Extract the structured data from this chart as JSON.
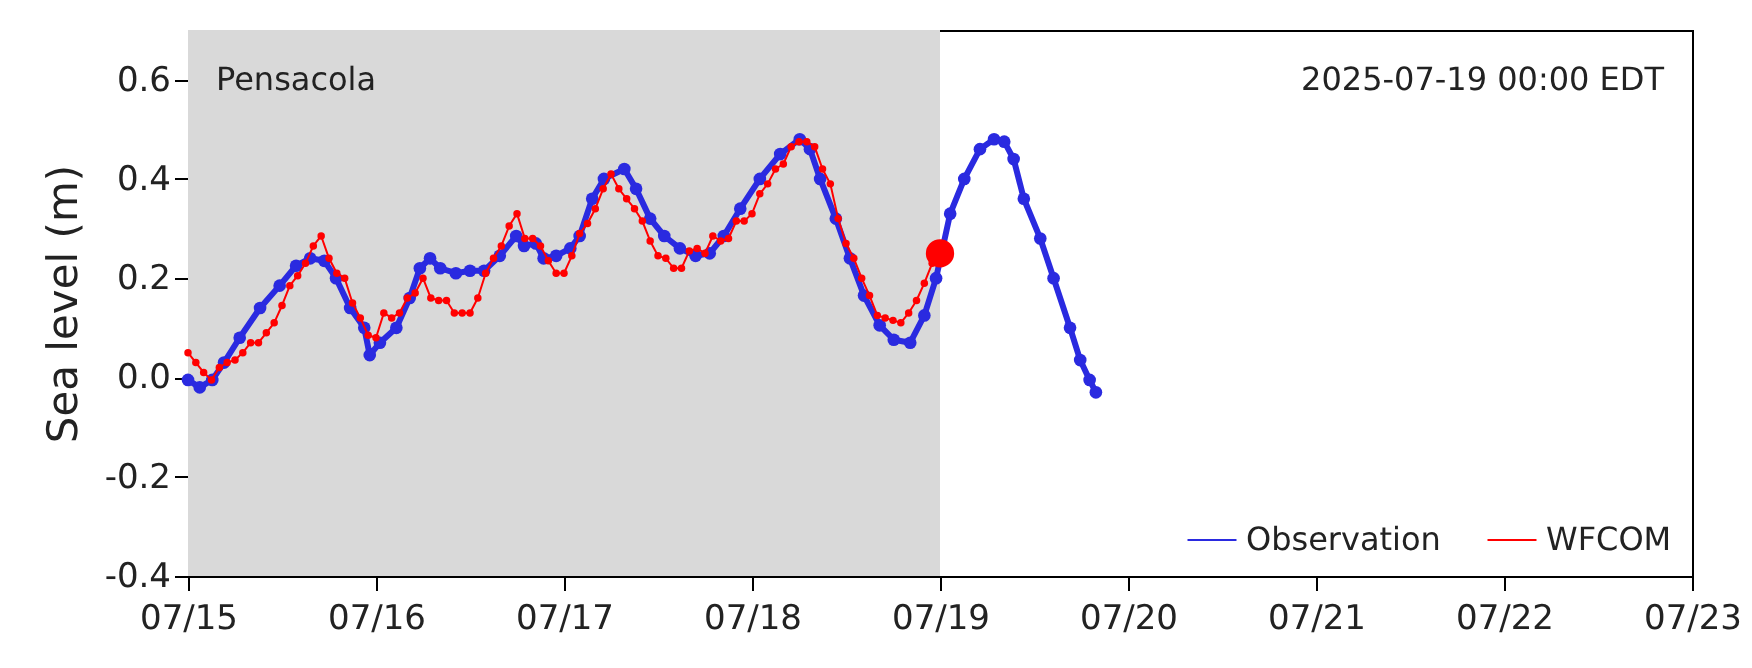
{
  "chart_data": {
    "type": "line",
    "ylabel": "Sea level (m)",
    "annotations": [
      "Pensacola",
      "2025-07-19 00:00 EDT"
    ],
    "xlim": [
      "2025-07-15",
      "2025-07-23"
    ],
    "xticks": [
      {
        "value": "2025-07-15",
        "label": "07/15"
      },
      {
        "value": "2025-07-16",
        "label": "07/16"
      },
      {
        "value": "2025-07-17",
        "label": "07/17"
      },
      {
        "value": "2025-07-18",
        "label": "07/18"
      },
      {
        "value": "2025-07-19",
        "label": "07/19"
      },
      {
        "value": "2025-07-20",
        "label": "07/20"
      },
      {
        "value": "2025-07-21",
        "label": "07/21"
      },
      {
        "value": "2025-07-22",
        "label": "07/22"
      },
      {
        "value": "2025-07-23",
        "label": "07/23"
      }
    ],
    "ylim": [
      -0.4,
      0.7
    ],
    "yticks": [
      -0.4,
      -0.2,
      {
        "value": 0,
        "label": "0.0"
      },
      0.2,
      0.4,
      0.6
    ],
    "bands": [
      {
        "axis": "x",
        "from": "2025-07-15",
        "to": "2025-07-19",
        "color": "#d9d9d9"
      }
    ],
    "legend": "bottom right",
    "marker": "circle",
    "series": [
      {
        "name": "Observation",
        "color": "#2a2ae0",
        "x": [
          "2025-07-15T00:00",
          "2025-07-15T01:30",
          "2025-07-15T03:06",
          "2025-07-15T04:36",
          "2025-07-15T06:36",
          "2025-07-15T09:12",
          "2025-07-15T11:42",
          "2025-07-15T13:48",
          "2025-07-15T15:36",
          "2025-07-15T17:24",
          "2025-07-15T18:54",
          "2025-07-15T20:42",
          "2025-07-15T22:30",
          "2025-07-15T23:12",
          "2025-07-16T00:30",
          "2025-07-16T02:36",
          "2025-07-16T04:18",
          "2025-07-16T05:36",
          "2025-07-16T06:54",
          "2025-07-16T08:12",
          "2025-07-16T10:12",
          "2025-07-16T12:00",
          "2025-07-16T13:48",
          "2025-07-16T15:48",
          "2025-07-16T17:54",
          "2025-07-16T18:54",
          "2025-07-16T20:24",
          "2025-07-16T21:24",
          "2025-07-16T23:00",
          "2025-07-17T00:48",
          "2025-07-17T02:00",
          "2025-07-17T03:36",
          "2025-07-17T05:06",
          "2025-07-17T07:42",
          "2025-07-17T09:12",
          "2025-07-17T11:00",
          "2025-07-17T12:48",
          "2025-07-17T14:48",
          "2025-07-17T16:48",
          "2025-07-17T18:36",
          "2025-07-17T20:24",
          "2025-07-17T22:30",
          "2025-07-18T01:00",
          "2025-07-18T03:36",
          "2025-07-18T06:06",
          "2025-07-18T07:24",
          "2025-07-18T08:42",
          "2025-07-18T10:42",
          "2025-07-18T12:30",
          "2025-07-18T14:18",
          "2025-07-18T16:18",
          "2025-07-18T18:06",
          "2025-07-18T20:12",
          "2025-07-18T22:00",
          "2025-07-18T23:30",
          "2025-07-19T01:18",
          "2025-07-19T03:06",
          "2025-07-19T05:06",
          "2025-07-19T06:54",
          "2025-07-19T08:12",
          "2025-07-19T09:24",
          "2025-07-19T10:42",
          "2025-07-19T12:48",
          "2025-07-19T14:30",
          "2025-07-19T16:36",
          "2025-07-19T17:54",
          "2025-07-19T19:06",
          "2025-07-19T19:54"
        ],
        "values": [
          -0.005,
          -0.02,
          -0.005,
          0.03,
          0.08,
          0.14,
          0.185,
          0.225,
          0.24,
          0.235,
          0.2,
          0.14,
          0.1,
          0.045,
          0.07,
          0.1,
          0.16,
          0.22,
          0.24,
          0.22,
          0.21,
          0.215,
          0.215,
          0.245,
          0.285,
          0.265,
          0.27,
          0.24,
          0.245,
          0.26,
          0.285,
          0.36,
          0.4,
          0.42,
          0.38,
          0.32,
          0.285,
          0.26,
          0.245,
          0.25,
          0.285,
          0.34,
          0.4,
          0.45,
          0.48,
          0.46,
          0.4,
          0.32,
          0.24,
          0.165,
          0.105,
          0.076,
          0.07,
          0.125,
          0.2,
          0.33,
          0.4,
          0.46,
          0.48,
          0.475,
          0.44,
          0.36,
          0.28,
          0.2,
          0.1,
          0.035,
          -0.005,
          -0.03
        ]
      },
      {
        "name": "WFCOM",
        "color": "#ff0000",
        "x": [
          "2025-07-15T00:00",
          "2025-07-15T01:00",
          "2025-07-15T02:00",
          "2025-07-15T03:00",
          "2025-07-15T04:00",
          "2025-07-15T05:00",
          "2025-07-15T06:00",
          "2025-07-15T07:00",
          "2025-07-15T08:00",
          "2025-07-15T09:00",
          "2025-07-15T10:00",
          "2025-07-15T11:00",
          "2025-07-15T12:00",
          "2025-07-15T13:00",
          "2025-07-15T14:00",
          "2025-07-15T15:00",
          "2025-07-15T16:00",
          "2025-07-15T17:00",
          "2025-07-15T18:00",
          "2025-07-15T19:00",
          "2025-07-15T20:00",
          "2025-07-15T21:00",
          "2025-07-15T22:00",
          "2025-07-15T23:00",
          "2025-07-16T00:00",
          "2025-07-16T01:00",
          "2025-07-16T02:00",
          "2025-07-16T03:00",
          "2025-07-16T04:00",
          "2025-07-16T05:00",
          "2025-07-16T06:00",
          "2025-07-16T07:00",
          "2025-07-16T08:00",
          "2025-07-16T09:00",
          "2025-07-16T10:00",
          "2025-07-16T11:00",
          "2025-07-16T12:00",
          "2025-07-16T13:00",
          "2025-07-16T14:00",
          "2025-07-16T15:00",
          "2025-07-16T16:00",
          "2025-07-16T17:00",
          "2025-07-16T18:00",
          "2025-07-16T19:00",
          "2025-07-16T20:00",
          "2025-07-16T21:00",
          "2025-07-16T22:00",
          "2025-07-16T23:00",
          "2025-07-17T00:00",
          "2025-07-17T01:00",
          "2025-07-17T02:00",
          "2025-07-17T03:00",
          "2025-07-17T04:00",
          "2025-07-17T05:00",
          "2025-07-17T06:00",
          "2025-07-17T07:00",
          "2025-07-17T08:00",
          "2025-07-17T09:00",
          "2025-07-17T10:00",
          "2025-07-17T11:00",
          "2025-07-17T12:00",
          "2025-07-17T13:00",
          "2025-07-17T14:00",
          "2025-07-17T15:00",
          "2025-07-17T16:00",
          "2025-07-17T17:00",
          "2025-07-17T18:00",
          "2025-07-17T19:00",
          "2025-07-17T20:00",
          "2025-07-17T21:00",
          "2025-07-17T22:00",
          "2025-07-17T23:00",
          "2025-07-18T00:00",
          "2025-07-18T01:00",
          "2025-07-18T02:00",
          "2025-07-18T03:00",
          "2025-07-18T04:00",
          "2025-07-18T05:00",
          "2025-07-18T06:00",
          "2025-07-18T07:00",
          "2025-07-18T08:00",
          "2025-07-18T09:00",
          "2025-07-18T10:00",
          "2025-07-18T11:00",
          "2025-07-18T12:00",
          "2025-07-18T13:00",
          "2025-07-18T14:00",
          "2025-07-18T15:00",
          "2025-07-18T16:00",
          "2025-07-18T17:00",
          "2025-07-18T18:00",
          "2025-07-18T19:00",
          "2025-07-18T20:00",
          "2025-07-18T21:00",
          "2025-07-18T22:00",
          "2025-07-18T23:00"
        ],
        "values": [
          0.05,
          0.03,
          0.01,
          -0.005,
          0.02,
          0.03,
          0.035,
          0.05,
          0.07,
          0.07,
          0.09,
          0.11,
          0.145,
          0.185,
          0.205,
          0.23,
          0.265,
          0.285,
          0.24,
          0.21,
          0.2,
          0.15,
          0.12,
          0.085,
          0.08,
          0.13,
          0.12,
          0.13,
          0.16,
          0.17,
          0.2,
          0.16,
          0.155,
          0.155,
          0.13,
          0.13,
          0.13,
          0.16,
          0.21,
          0.24,
          0.265,
          0.305,
          0.33,
          0.28,
          0.28,
          0.265,
          0.235,
          0.21,
          0.21,
          0.245,
          0.29,
          0.31,
          0.34,
          0.38,
          0.41,
          0.38,
          0.36,
          0.34,
          0.315,
          0.275,
          0.245,
          0.24,
          0.22,
          0.22,
          0.255,
          0.26,
          0.25,
          0.285,
          0.275,
          0.28,
          0.315,
          0.315,
          0.33,
          0.37,
          0.39,
          0.42,
          0.43,
          0.465,
          0.475,
          0.475,
          0.465,
          0.42,
          0.39,
          0.32,
          0.27,
          0.24,
          0.2,
          0.165,
          0.125,
          0.12,
          0.115,
          0.11,
          0.13,
          0.155,
          0.19,
          0.23
        ]
      },
      {
        "type": "scatter",
        "color": "#ff0000",
        "x": [
          "2025-07-19T00:00"
        ],
        "values": [
          0.25
        ]
      }
    ]
  }
}
